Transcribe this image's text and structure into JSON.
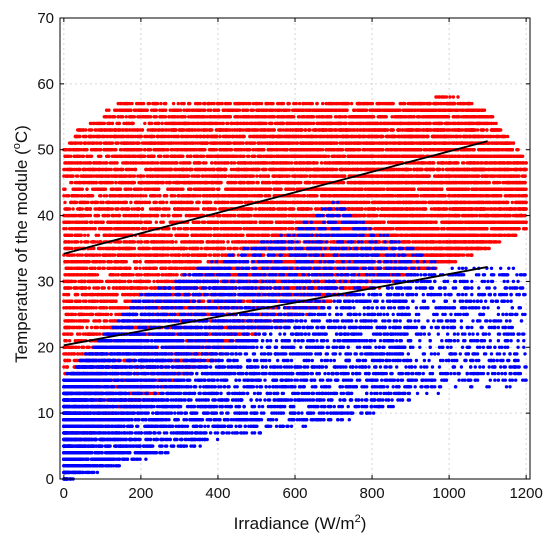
{
  "chart_data": {
    "type": "scatter",
    "xlabel": "Irradiance (W/m",
    "xlabel_sup": "2",
    "xlabel_end": ")",
    "ylabel": "Temperature of the module (",
    "ylabel_sup": "o",
    "ylabel_end": "C)",
    "xlim": [
      -10,
      1210
    ],
    "ylim": [
      0,
      70
    ],
    "x_ticks": [
      0,
      200,
      400,
      600,
      800,
      1000,
      1200
    ],
    "y_ticks": [
      0,
      10,
      20,
      30,
      40,
      50,
      60,
      70
    ],
    "grid": true,
    "series": [
      {
        "color": "#ff0000",
        "marker": "dot",
        "point_count_approx": 18000,
        "envelope": {
          "x_range": [
            0,
            1200
          ],
          "y_upper_approx": [
            [
              0,
              50
            ],
            [
              40,
              53
            ],
            [
              150,
              57
            ],
            [
              900,
              57
            ],
            [
              1000,
              58
            ],
            [
              1100,
              56
            ],
            [
              1200,
              48
            ]
          ],
          "y_lower_approx": [
            [
              0,
              2
            ],
            [
              100,
              8
            ],
            [
              300,
              15
            ],
            [
              500,
              22
            ],
            [
              700,
              27
            ],
            [
              900,
              31
            ],
            [
              1100,
              35
            ],
            [
              1200,
              38
            ]
          ]
        }
      },
      {
        "color": "#0000ff",
        "marker": "dot",
        "point_count_approx": 9000,
        "envelope": {
          "x_range": [
            0,
            1200
          ],
          "y_upper_approx": [
            [
              0,
              15
            ],
            [
              200,
              28
            ],
            [
              400,
              33
            ],
            [
              600,
              38
            ],
            [
              700,
              42
            ],
            [
              800,
              38
            ],
            [
              1000,
              32
            ]
          ],
          "y_lower_approx": [
            [
              0,
              0
            ],
            [
              200,
              3
            ],
            [
              400,
              6
            ],
            [
              600,
              8
            ],
            [
              800,
              10
            ],
            [
              1000,
              14
            ]
          ]
        }
      }
    ],
    "fit_lines": [
      {
        "color": "#000000",
        "x": [
          0,
          1100
        ],
        "y": [
          34.2,
          51.3
        ]
      },
      {
        "color": "#000000",
        "x": [
          0,
          1100
        ],
        "y": [
          20.3,
          32.2
        ]
      }
    ]
  }
}
